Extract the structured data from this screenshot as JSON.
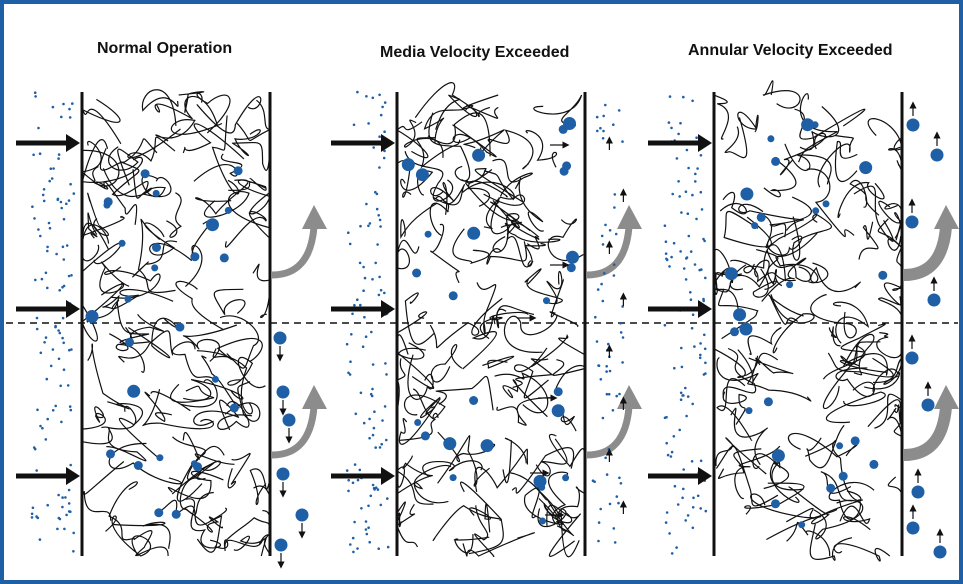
{
  "panels": [
    {
      "title": "Normal Operation"
    },
    {
      "title": "Media Velocity Exceeded"
    },
    {
      "title": "Annular Velocity Exceeded"
    }
  ],
  "colors": {
    "frame": "#1f5fa6",
    "droplet": "#1f5fa6",
    "fiber": "#111111",
    "flow_arrow": "#8c8c8c"
  }
}
